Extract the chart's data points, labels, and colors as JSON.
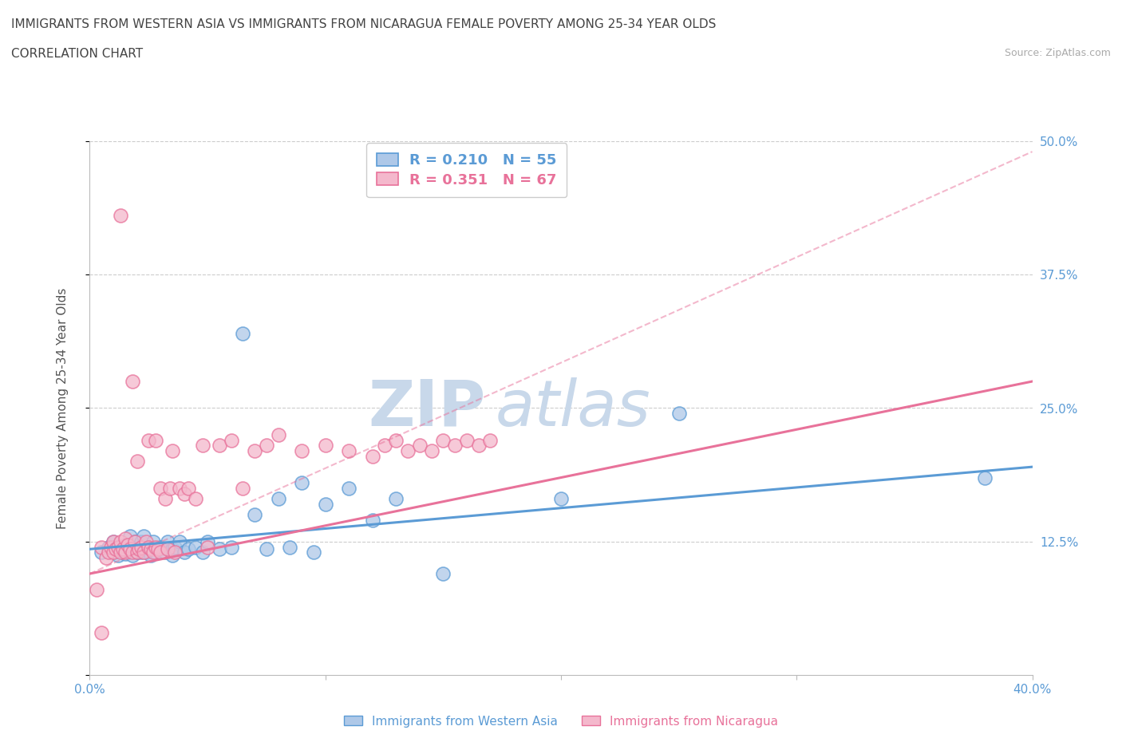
{
  "title_line1": "IMMIGRANTS FROM WESTERN ASIA VS IMMIGRANTS FROM NICARAGUA FEMALE POVERTY AMONG 25-34 YEAR OLDS",
  "title_line2": "CORRELATION CHART",
  "source_text": "Source: ZipAtlas.com",
  "ylabel": "Female Poverty Among 25-34 Year Olds",
  "xlim": [
    0.0,
    0.4
  ],
  "ylim": [
    0.0,
    0.5
  ],
  "xticks": [
    0.0,
    0.1,
    0.2,
    0.3,
    0.4
  ],
  "xticklabels": [
    "0.0%",
    "",
    "",
    "",
    "40.0%"
  ],
  "ytick_positions": [
    0.0,
    0.125,
    0.25,
    0.375,
    0.5
  ],
  "ytick_labels": [
    "",
    "12.5%",
    "25.0%",
    "37.5%",
    "50.0%"
  ],
  "watermark_zip": "ZIP",
  "watermark_atlas": "atlas",
  "legend_entries": [
    {
      "label": "Immigrants from Western Asia",
      "color": "#5b9bd5",
      "R": "0.210",
      "N": "55"
    },
    {
      "label": "Immigrants from Nicaragua",
      "color": "#e d7db3",
      "R": "0.351",
      "N": "67"
    }
  ],
  "blue_scatter_x": [
    0.005,
    0.008,
    0.01,
    0.01,
    0.012,
    0.013,
    0.015,
    0.015,
    0.016,
    0.017,
    0.018,
    0.019,
    0.02,
    0.02,
    0.021,
    0.022,
    0.022,
    0.023,
    0.023,
    0.024,
    0.025,
    0.025,
    0.026,
    0.027,
    0.028,
    0.03,
    0.03,
    0.032,
    0.033,
    0.035,
    0.035,
    0.036,
    0.038,
    0.04,
    0.042,
    0.045,
    0.048,
    0.05,
    0.055,
    0.06,
    0.065,
    0.07,
    0.075,
    0.08,
    0.085,
    0.09,
    0.095,
    0.1,
    0.11,
    0.12,
    0.13,
    0.15,
    0.2,
    0.25,
    0.38
  ],
  "blue_scatter_y": [
    0.115,
    0.12,
    0.115,
    0.125,
    0.112,
    0.118,
    0.114,
    0.122,
    0.118,
    0.13,
    0.112,
    0.125,
    0.115,
    0.12,
    0.118,
    0.115,
    0.125,
    0.118,
    0.13,
    0.115,
    0.12,
    0.118,
    0.112,
    0.125,
    0.115,
    0.118,
    0.12,
    0.115,
    0.125,
    0.118,
    0.112,
    0.12,
    0.125,
    0.115,
    0.118,
    0.12,
    0.115,
    0.125,
    0.118,
    0.12,
    0.32,
    0.15,
    0.118,
    0.165,
    0.12,
    0.18,
    0.115,
    0.16,
    0.175,
    0.145,
    0.165,
    0.095,
    0.165,
    0.245,
    0.185
  ],
  "pink_scatter_x": [
    0.003,
    0.005,
    0.007,
    0.008,
    0.009,
    0.01,
    0.01,
    0.011,
    0.012,
    0.013,
    0.013,
    0.014,
    0.015,
    0.015,
    0.016,
    0.017,
    0.018,
    0.018,
    0.019,
    0.02,
    0.02,
    0.021,
    0.022,
    0.023,
    0.024,
    0.025,
    0.025,
    0.026,
    0.027,
    0.028,
    0.028,
    0.029,
    0.03,
    0.03,
    0.032,
    0.033,
    0.034,
    0.035,
    0.036,
    0.038,
    0.04,
    0.042,
    0.045,
    0.048,
    0.05,
    0.055,
    0.06,
    0.065,
    0.07,
    0.075,
    0.08,
    0.09,
    0.1,
    0.11,
    0.12,
    0.125,
    0.13,
    0.135,
    0.14,
    0.145,
    0.15,
    0.155,
    0.16,
    0.165,
    0.17,
    0.005,
    0.013
  ],
  "pink_scatter_y": [
    0.08,
    0.12,
    0.11,
    0.115,
    0.12,
    0.115,
    0.125,
    0.118,
    0.12,
    0.115,
    0.125,
    0.118,
    0.115,
    0.128,
    0.122,
    0.118,
    0.275,
    0.115,
    0.125,
    0.115,
    0.2,
    0.118,
    0.12,
    0.115,
    0.125,
    0.12,
    0.22,
    0.118,
    0.115,
    0.12,
    0.22,
    0.118,
    0.115,
    0.175,
    0.165,
    0.118,
    0.175,
    0.21,
    0.115,
    0.175,
    0.17,
    0.175,
    0.165,
    0.215,
    0.12,
    0.215,
    0.22,
    0.175,
    0.21,
    0.215,
    0.225,
    0.21,
    0.215,
    0.21,
    0.205,
    0.215,
    0.22,
    0.21,
    0.215,
    0.21,
    0.22,
    0.215,
    0.22,
    0.215,
    0.22,
    0.04,
    0.43
  ],
  "blue_line_x": [
    0.0,
    0.4
  ],
  "blue_line_y": [
    0.118,
    0.195
  ],
  "pink_line_x": [
    0.0,
    0.4
  ],
  "pink_line_y": [
    0.095,
    0.275
  ],
  "pink_dashed_line_x": [
    0.0,
    0.4
  ],
  "pink_dashed_line_y": [
    0.095,
    0.49
  ],
  "blue_color": "#5b9bd5",
  "pink_color": "#e8729a",
  "blue_fill": "#aec8e8",
  "pink_fill": "#f4b8cc",
  "grid_color": "#cccccc",
  "background_color": "#ffffff",
  "title_color": "#444444",
  "axis_label_color": "#555555",
  "tick_color": "#5b9bd5",
  "watermark_color": "#c8d8ea"
}
